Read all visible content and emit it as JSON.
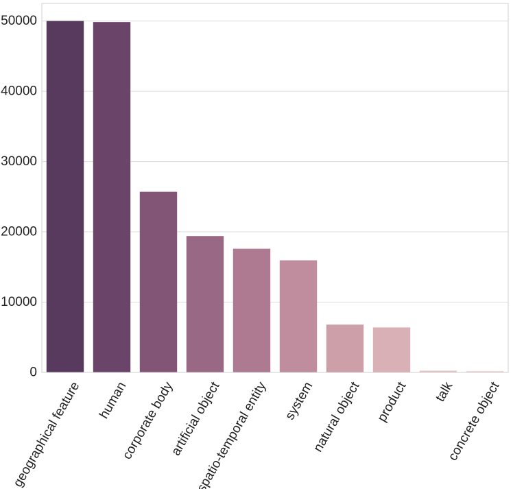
{
  "chart_data": {
    "type": "bar",
    "title": "",
    "xlabel": "",
    "ylabel": "",
    "ylim": [
      0,
      52500
    ],
    "yticks": [
      0,
      10000,
      20000,
      30000,
      40000,
      50000
    ],
    "ytick_labels": [
      "0",
      "10000",
      "20000",
      "30000",
      "40000",
      "50000"
    ],
    "grid": true,
    "categories": [
      "geographical feature",
      "human",
      "corporate body",
      "artificial object",
      "spatio-temporal entity",
      "system",
      "natural object",
      "product",
      "talk",
      "concrete object"
    ],
    "values": [
      50000,
      49850,
      25700,
      19400,
      17600,
      15950,
      6800,
      6400,
      250,
      200
    ],
    "colors": [
      "#573a5e",
      "#6a4569",
      "#825577",
      "#986885",
      "#ae7a92",
      "#bf8d9e",
      "#cc9fa9",
      "#d9b0b5",
      "#e6c4c4",
      "#efd6d4"
    ]
  }
}
